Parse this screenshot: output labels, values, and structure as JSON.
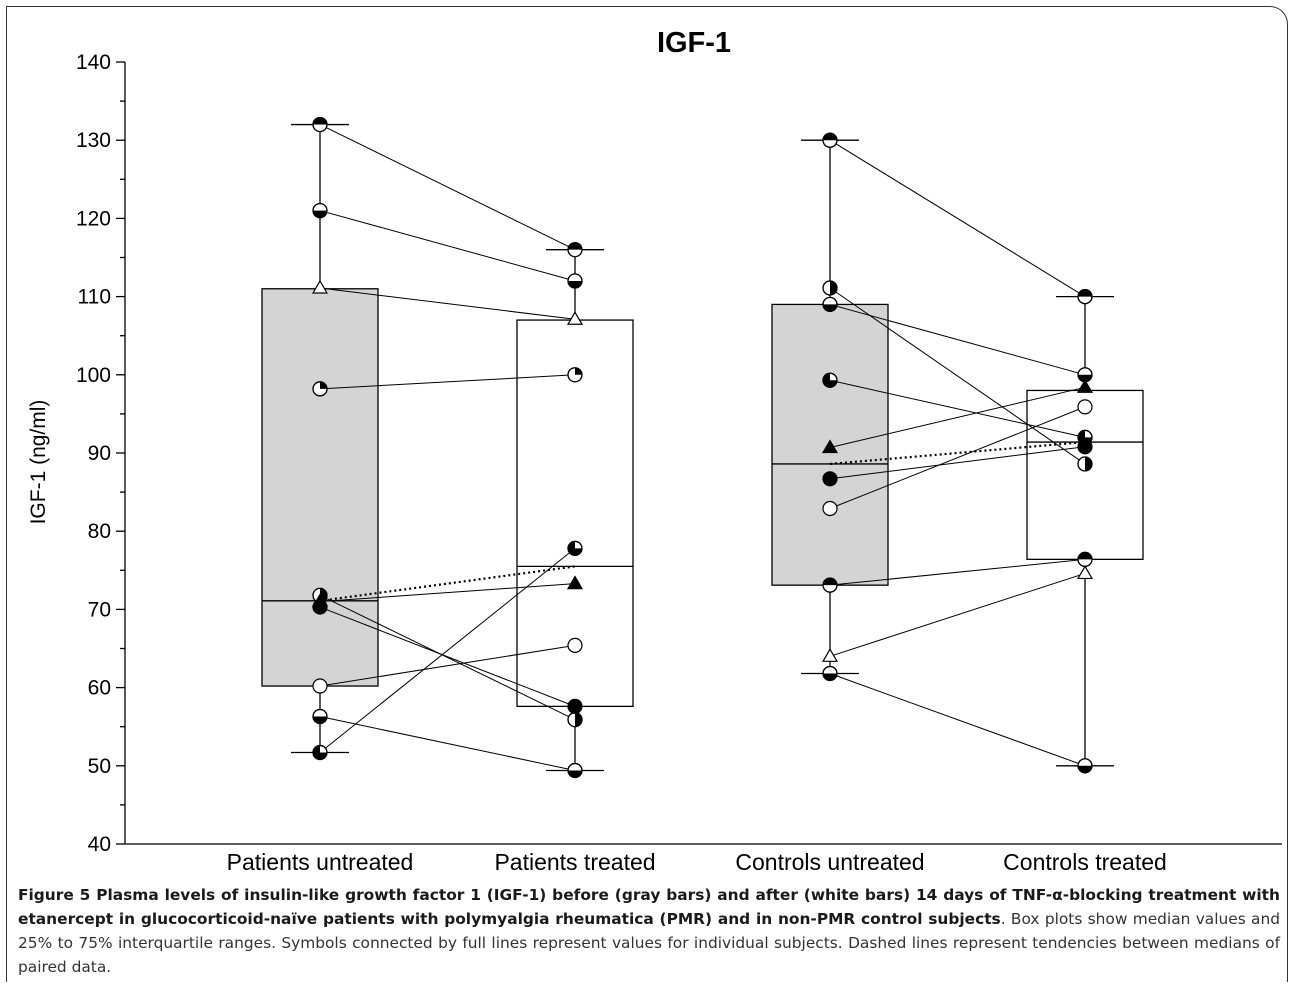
{
  "chart_data": {
    "type": "box",
    "title": "IGF-1",
    "ylabel": "IGF-1 (ng/ml)",
    "xlabel": "",
    "ylim": [
      40,
      140
    ],
    "yticks": [
      40,
      50,
      60,
      70,
      80,
      90,
      100,
      110,
      120,
      130,
      140
    ],
    "categories": [
      "Patients untreated",
      "Patients treated",
      "Controls untreated",
      "Controls treated"
    ],
    "boxes": [
      {
        "category": "Patients untreated",
        "min": 51.7,
        "q1": 60.2,
        "median": 71.1,
        "q3": 111.0,
        "max": 132.0,
        "fill": "#d4d4d4"
      },
      {
        "category": "Patients treated",
        "min": 49.4,
        "q1": 57.6,
        "median": 75.5,
        "q3": 107.0,
        "max": 116.0,
        "fill": "#ffffff"
      },
      {
        "category": "Controls untreated",
        "min": 61.8,
        "q1": 73.1,
        "median": 88.6,
        "q3": 109.0,
        "max": 130.0,
        "fill": "#d4d4d4"
      },
      {
        "category": "Controls treated",
        "min": 50.0,
        "q1": 76.4,
        "median": 91.4,
        "q3": 98.0,
        "max": 110.0,
        "fill": "#ffffff"
      }
    ],
    "subjects_patients": [
      {
        "before": 132.0,
        "after": 116.0,
        "symbol": "half-top"
      },
      {
        "before": 121.0,
        "after": 112.0,
        "symbol": "half-bottom"
      },
      {
        "before": 111.1,
        "after": 107.1,
        "symbol": "triangle-open"
      },
      {
        "before": 98.2,
        "after": 100.0,
        "symbol": "quarter"
      },
      {
        "before": 71.8,
        "after": 55.9,
        "symbol": "half-right"
      },
      {
        "before": 71.0,
        "after": 73.3,
        "symbol": "triangle-filled"
      },
      {
        "before": 70.3,
        "after": 57.6,
        "symbol": "filled"
      },
      {
        "before": 60.2,
        "after": 65.4,
        "symbol": "open"
      },
      {
        "before": 56.3,
        "after": 49.4,
        "symbol": "half-bottom"
      },
      {
        "before": 51.7,
        "after": 77.8,
        "symbol": "three-quarter"
      }
    ],
    "subjects_controls": [
      {
        "before": 130.0,
        "after": 110.0,
        "symbol": "half-top"
      },
      {
        "before": 111.1,
        "after": 88.6,
        "symbol": "half-right"
      },
      {
        "before": 109.0,
        "after": 100.0,
        "symbol": "half-bottom"
      },
      {
        "before": 99.3,
        "after": 92.0,
        "symbol": "three-quarter"
      },
      {
        "before": 90.7,
        "after": 98.4,
        "symbol": "triangle-filled"
      },
      {
        "before": 86.7,
        "after": 90.8,
        "symbol": "filled"
      },
      {
        "before": 82.9,
        "after": 95.9,
        "symbol": "open"
      },
      {
        "before": 73.1,
        "after": 76.4,
        "symbol": "half-top"
      },
      {
        "before": 64.0,
        "after": 74.6,
        "symbol": "triangle-open"
      },
      {
        "before": 61.8,
        "after": 50.0,
        "symbol": "half-bottom"
      }
    ],
    "median_trends": [
      {
        "from": 71.1,
        "to": 75.5,
        "style": "dotted"
      },
      {
        "from": 88.6,
        "to": 91.4,
        "style": "dotted"
      }
    ]
  },
  "caption": {
    "bold": "Figure 5 Plasma levels of insulin-like growth factor 1 (IGF-1) before (gray bars) and after (white bars) 14 days of TNF-α-blocking treatment with etanercept in glucocorticoid-naïve patients with polymyalgia rheumatica (PMR) and in non-PMR control subjects",
    "rest": ". Box plots show median values and 25% to 75% interquartile ranges. Symbols connected by full lines represent values for individual subjects. Dashed lines represent tendencies between medians of paired data."
  }
}
